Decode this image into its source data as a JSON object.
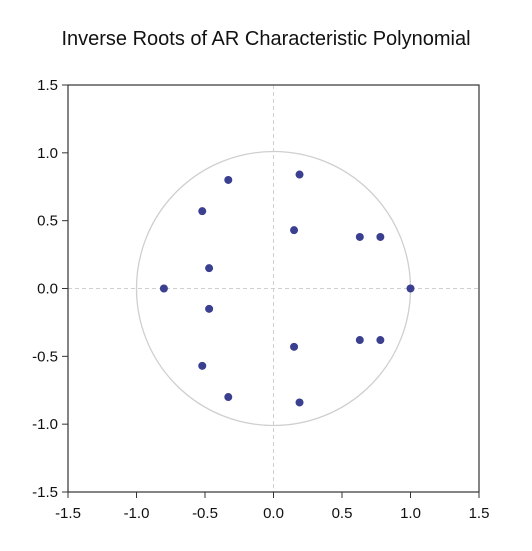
{
  "chart_data": {
    "type": "scatter",
    "title": "Inverse Roots of AR Characteristic Polynomial",
    "xlabel": "",
    "ylabel": "",
    "xlim": [
      -1.5,
      1.5
    ],
    "ylim": [
      -1.5,
      1.5
    ],
    "x_ticks": [
      -1.5,
      -1.0,
      -0.5,
      0.0,
      0.5,
      1.0,
      1.5
    ],
    "y_ticks": [
      1.5,
      1.0,
      0.5,
      0.0,
      -0.5,
      -1.0,
      -1.5
    ],
    "x_tick_labels": [
      "-1.5",
      "-1.0",
      "-0.5",
      "0.0",
      "0.5",
      "1.0",
      "1.5"
    ],
    "y_tick_labels": [
      "1.5",
      "1.0",
      "0.5",
      "0.0",
      "-0.5",
      "-1.0",
      "-1.5"
    ],
    "unit_circle": true,
    "zero_lines": true,
    "grid": false,
    "points": [
      {
        "x": -0.33,
        "y": 0.8
      },
      {
        "x": 0.19,
        "y": 0.84
      },
      {
        "x": -0.52,
        "y": 0.57
      },
      {
        "x": 0.15,
        "y": 0.43
      },
      {
        "x": 0.63,
        "y": 0.38
      },
      {
        "x": 0.78,
        "y": 0.38
      },
      {
        "x": -0.47,
        "y": 0.15
      },
      {
        "x": -0.8,
        "y": 0.0
      },
      {
        "x": 1.0,
        "y": 0.0
      },
      {
        "x": -0.47,
        "y": -0.15
      },
      {
        "x": 0.15,
        "y": -0.43
      },
      {
        "x": 0.63,
        "y": -0.38
      },
      {
        "x": 0.78,
        "y": -0.38
      },
      {
        "x": -0.52,
        "y": -0.57
      },
      {
        "x": -0.33,
        "y": -0.8
      },
      {
        "x": 0.19,
        "y": -0.84
      }
    ],
    "colors": {
      "point": "#3a3f8f",
      "circle": "#cfcfcf",
      "zero_line": "#cfcfcf",
      "frame": "#333333"
    }
  }
}
